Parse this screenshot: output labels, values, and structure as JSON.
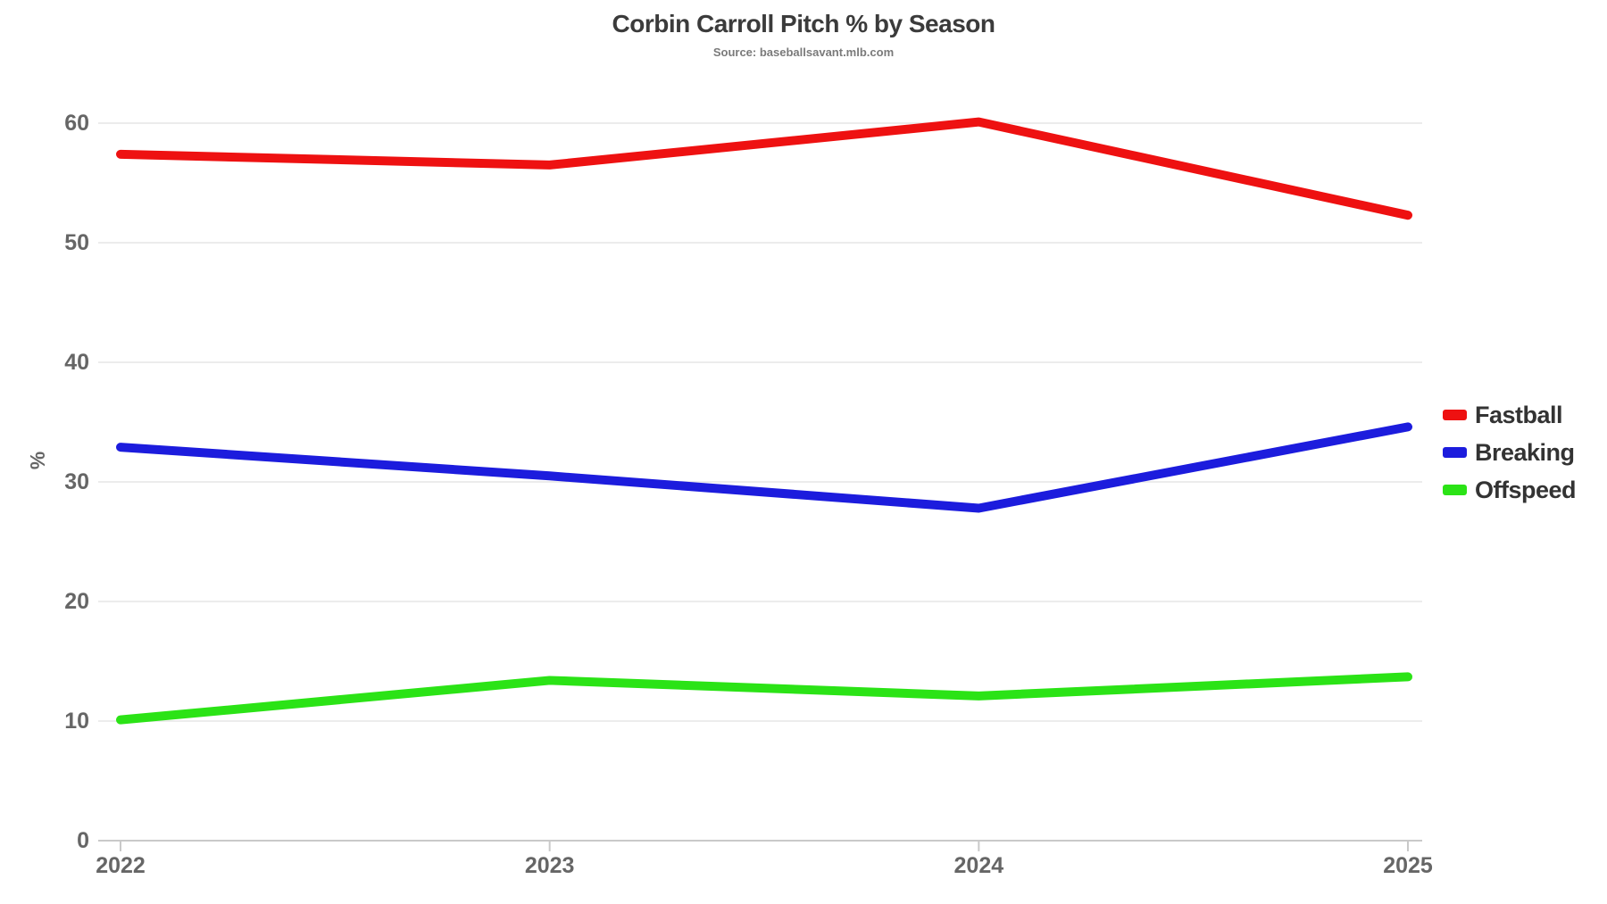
{
  "title": "Corbin Carroll Pitch % by Season",
  "subtitle": "Source: baseballsavant.mlb.com",
  "chart_data": {
    "type": "line",
    "categories": [
      "2022",
      "2023",
      "2024",
      "2025"
    ],
    "series": [
      {
        "name": "Fastball",
        "color": "#ee1111",
        "values": [
          57.4,
          56.5,
          60.1,
          52.3
        ]
      },
      {
        "name": "Breaking",
        "color": "#1c1cdd",
        "values": [
          32.9,
          30.5,
          27.8,
          34.6
        ]
      },
      {
        "name": "Offspeed",
        "color": "#2be316",
        "values": [
          10.1,
          13.4,
          12.1,
          13.7
        ]
      }
    ],
    "xlabel": "",
    "ylabel": "%",
    "ylim": [
      0,
      60
    ],
    "yticks": [
      0,
      10,
      20,
      30,
      40,
      50,
      60
    ],
    "grid": true,
    "legend_position": "right",
    "line_width": 10
  },
  "axis_style": {
    "tick_label_color": "#666666",
    "grid_color": "#ececec",
    "axis_line_color": "#c9c9c9"
  }
}
